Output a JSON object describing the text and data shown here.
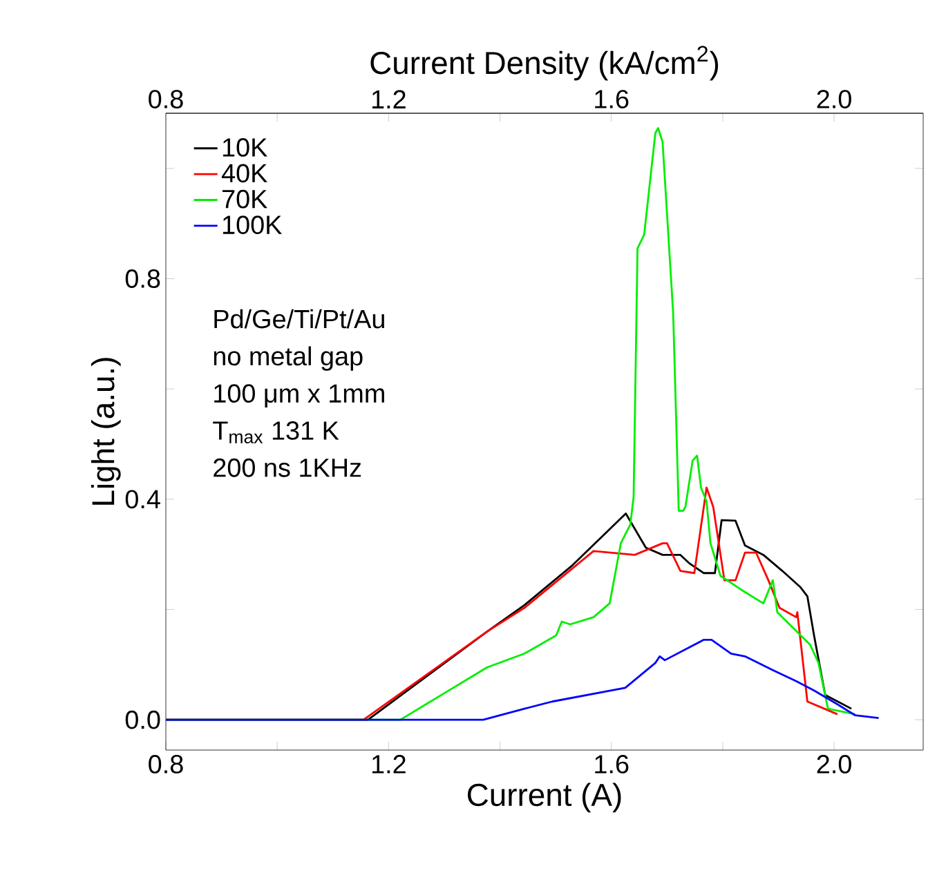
{
  "chart_data": {
    "type": "line",
    "xlabel": "Current (A)",
    "ylabel": "Light (a.u.)",
    "x2label": "Current Density (kA/cm$^{2}$)",
    "xlim": [
      0.8,
      2.16
    ],
    "ylim": [
      -0.055,
      1.1
    ],
    "x2lim": [
      0.8,
      2.16
    ],
    "xticks": [
      0.8,
      {
        "value": 1.0,
        "label": null
      },
      1.2,
      {
        "value": 1.4,
        "label": null
      },
      1.6,
      {
        "value": 1.8,
        "label": null
      },
      {
        "value": 2.0,
        "label": "2.0"
      }
    ],
    "x2ticks": [
      0.8,
      {
        "value": 1.0,
        "label": null
      },
      1.2,
      {
        "value": 1.4,
        "label": null
      },
      1.6,
      {
        "value": 1.8,
        "label": null
      },
      {
        "value": 2.0,
        "label": "2.0"
      }
    ],
    "yticks": [
      {
        "value": 0,
        "label": "0.0"
      },
      {
        "value": 0.2,
        "label": null
      },
      0.4,
      {
        "value": 0.6,
        "label": null
      },
      0.8,
      {
        "value": 1.0,
        "label": null
      }
    ],
    "legend": "top left",
    "line_style": "solid",
    "annotations": [
      "Pd/Ge/Ti/Pt/Au",
      "no metal gap",
      "100 μm x 1mm",
      "T$_{max}$ 131 K",
      "200 ns 1KHz"
    ],
    "series": [
      {
        "name": "10K",
        "color": "#000000",
        "x": [
          0.8,
          1.163,
          1.377,
          1.444,
          1.53,
          1.626,
          1.662,
          1.692,
          1.724,
          1.741,
          1.766,
          1.786,
          1.798,
          1.823,
          1.84,
          1.873,
          1.907,
          1.939,
          1.952,
          1.964,
          1.984,
          2.031
        ],
        "values": [
          0,
          0,
          0.16,
          0.208,
          0.28,
          0.374,
          0.312,
          0.299,
          0.299,
          0.283,
          0.266,
          0.266,
          0.362,
          0.361,
          0.316,
          0.299,
          0.27,
          0.241,
          0.224,
          0.153,
          0.045,
          0.02
        ]
      },
      {
        "name": "40K",
        "color": "#ff0000",
        "x": [
          0.8,
          1.155,
          1.377,
          1.444,
          1.568,
          1.642,
          1.692,
          1.7,
          1.724,
          1.749,
          1.771,
          1.783,
          1.803,
          1.823,
          1.84,
          1.86,
          1.882,
          1.902,
          1.932,
          1.934,
          1.952,
          2.006
        ],
        "values": [
          0,
          0,
          0.16,
          0.203,
          0.306,
          0.299,
          0.32,
          0.32,
          0.27,
          0.266,
          0.421,
          0.386,
          0.253,
          0.253,
          0.303,
          0.303,
          0.253,
          0.203,
          0.186,
          0.195,
          0.033,
          0.01
        ]
      },
      {
        "name": "70K",
        "color": "#00ee00",
        "x": [
          0.8,
          1.221,
          1.295,
          1.377,
          1.444,
          1.501,
          1.511,
          1.526,
          1.568,
          1.597,
          1.617,
          1.634,
          1.64,
          1.647,
          1.659,
          1.679,
          1.684,
          1.692,
          1.711,
          1.721,
          1.729,
          1.733,
          1.746,
          1.754,
          1.761,
          1.771,
          1.778,
          1.796,
          1.833,
          1.873,
          1.89,
          1.898,
          1.957,
          1.972,
          1.989,
          2.038
        ],
        "values": [
          0,
          0,
          0.045,
          0.095,
          0.12,
          0.153,
          0.178,
          0.173,
          0.186,
          0.211,
          0.32,
          0.354,
          0.404,
          0.855,
          0.88,
          1.064,
          1.073,
          1.048,
          0.738,
          0.379,
          0.379,
          0.386,
          0.47,
          0.479,
          0.421,
          0.396,
          0.32,
          0.261,
          0.236,
          0.211,
          0.253,
          0.195,
          0.136,
          0.103,
          0.02,
          0.01
        ]
      },
      {
        "name": "100K",
        "color": "#0000ff",
        "x": [
          0.8,
          1.37,
          1.444,
          1.494,
          1.625,
          1.679,
          1.687,
          1.696,
          1.766,
          1.78,
          1.815,
          1.84,
          1.89,
          1.932,
          1.964,
          2.006,
          2.038,
          2.08
        ],
        "values": [
          0,
          0,
          0.02,
          0.033,
          0.058,
          0.103,
          0.115,
          0.108,
          0.145,
          0.145,
          0.12,
          0.115,
          0.09,
          0.07,
          0.053,
          0.028,
          0.008,
          0.003
        ]
      }
    ]
  }
}
